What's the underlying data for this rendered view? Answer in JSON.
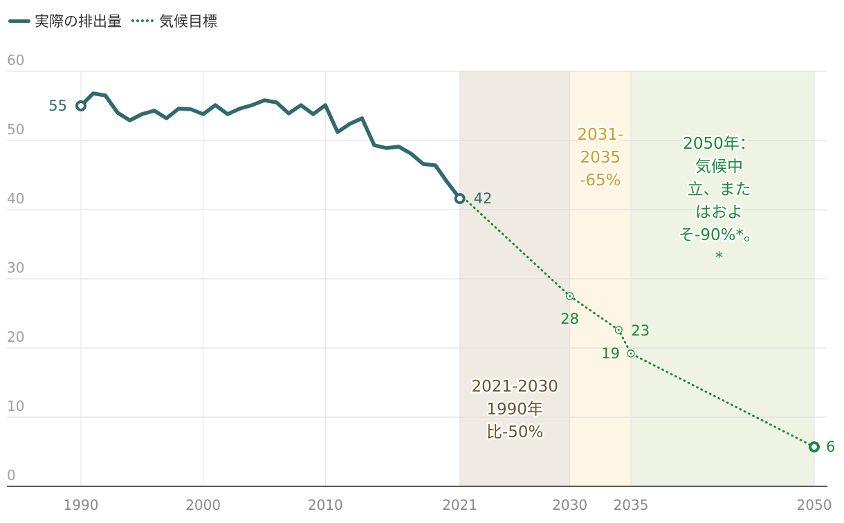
{
  "legend": {
    "actual_label": "実際の排出量",
    "target_label": "気候目標"
  },
  "colors": {
    "actual": "#2f6b6e",
    "target": "#1a8a3c",
    "band_2021_2030": "#f0ebe2",
    "band_2031_2035": "#fdf6e4",
    "band_2035_2050": "#eef3e3",
    "label_2021_2030": "#6b5330",
    "label_2031_2035": "#d79a1a",
    "label_2050": "#1a8a3c"
  },
  "chart_data": {
    "type": "line",
    "title": "",
    "xlabel": "",
    "ylabel": "",
    "ylim": [
      0,
      60
    ],
    "xlim": [
      1990,
      2050
    ],
    "y_ticks": [
      "0",
      "10",
      "20",
      "30",
      "40",
      "50",
      "60"
    ],
    "x_ticks": [
      "1990",
      "2000",
      "2010",
      "2021",
      "2030",
      "2035",
      "2050"
    ],
    "grid": true,
    "legend_position": "top-left",
    "series": [
      {
        "name": "実際の排出量",
        "style": "solid",
        "x": [
          1990,
          1991,
          1992,
          1993,
          1994,
          1995,
          1996,
          1997,
          1998,
          1999,
          2000,
          2001,
          2002,
          2003,
          2004,
          2005,
          2006,
          2007,
          2008,
          2009,
          2010,
          2011,
          2012,
          2013,
          2014,
          2015,
          2016,
          2017,
          2018,
          2019,
          2020,
          2021
        ],
        "y": [
          55.0,
          56.8,
          56.5,
          54.0,
          52.9,
          53.8,
          54.3,
          53.2,
          54.6,
          54.5,
          53.8,
          55.1,
          53.8,
          54.6,
          55.1,
          55.8,
          55.5,
          53.9,
          55.1,
          53.8,
          55.1,
          51.2,
          52.4,
          53.2,
          49.3,
          48.9,
          49.1,
          48.1,
          46.6,
          46.4,
          43.9,
          41.6
        ]
      },
      {
        "name": "気候目標",
        "style": "dotted",
        "x": [
          2021,
          2030,
          2034,
          2035,
          2050
        ],
        "y": [
          42.2,
          27.5,
          22.6,
          19.2,
          5.7
        ]
      }
    ],
    "point_labels": [
      {
        "x": 1990,
        "y": 55.0,
        "text": "55"
      },
      {
        "x": 2021,
        "y": 41.6,
        "text": "42"
      },
      {
        "x": 2030,
        "y": 27.5,
        "text": "28"
      },
      {
        "x": 2034,
        "y": 22.6,
        "text": "23"
      },
      {
        "x": 2035,
        "y": 19.2,
        "text": "19"
      },
      {
        "x": 2050,
        "y": 5.7,
        "text": "6"
      }
    ],
    "bands": [
      {
        "from": 2021,
        "to": 2030,
        "label_lines": [
          "2021-2030",
          "1990年",
          "比-50%"
        ]
      },
      {
        "from": 2030,
        "to": 2035,
        "label_lines": [
          "2031-",
          "2035",
          "-65%"
        ]
      },
      {
        "from": 2035,
        "to": 2050,
        "label_lines": [
          "2050年：",
          "気候中",
          "立、また",
          "はおよ",
          "そ-90%*。",
          "*"
        ]
      }
    ]
  }
}
